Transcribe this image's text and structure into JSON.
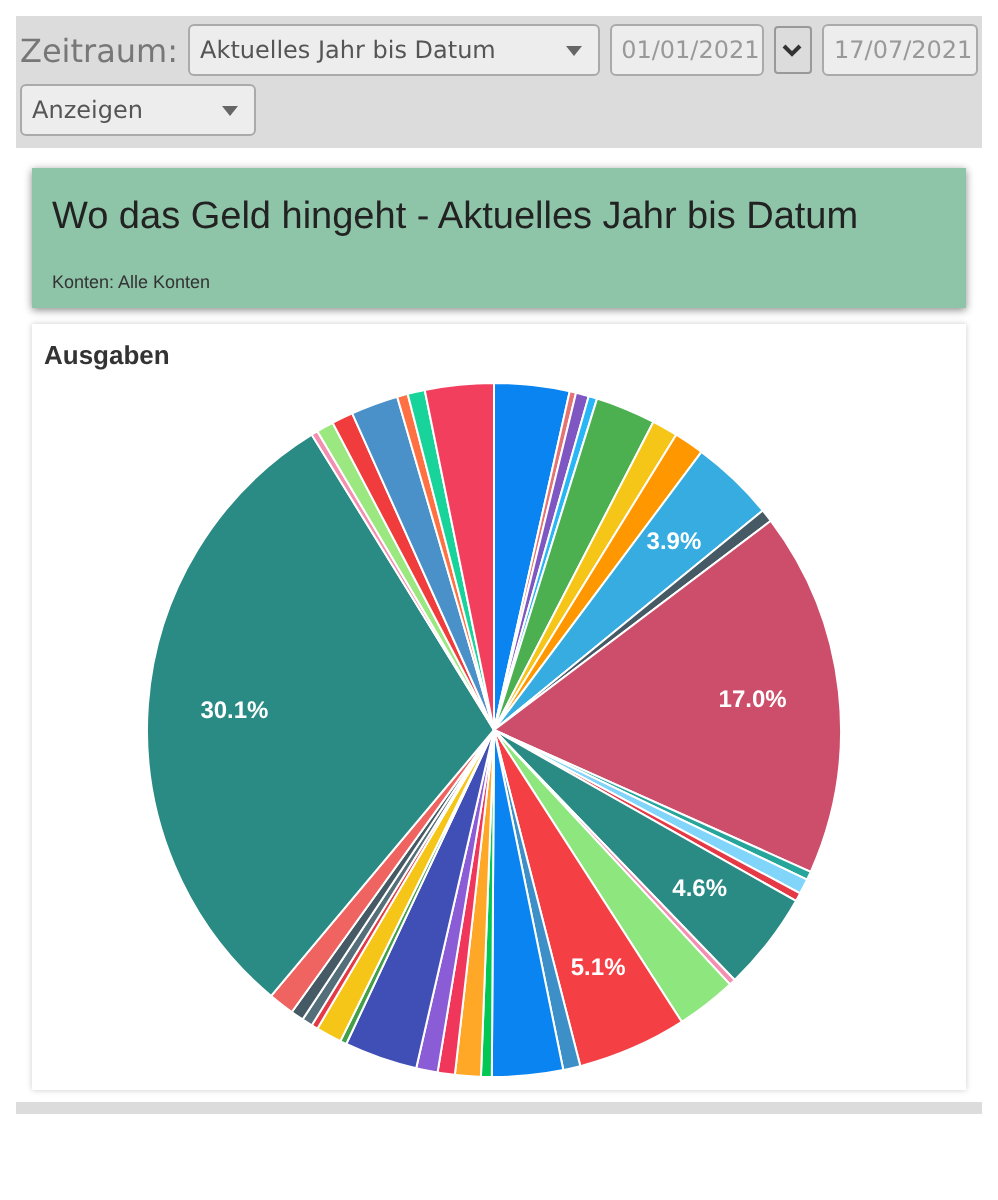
{
  "chart_data": {
    "type": "pie",
    "title": "Wo das Geld hingeht - Aktuelles Jahr bis Datum",
    "subtitle": "Konten: Alle Konten",
    "annotations": [
      "Zeitraum:",
      "Aktuelles Jahr bis Datum",
      "01/01/2021",
      "17/07/2021",
      "Anzeigen",
      "Ausgaben"
    ],
    "categories": [
      null,
      null,
      null,
      null,
      null,
      null,
      null,
      null,
      null,
      null,
      null,
      null,
      null,
      null,
      null,
      null,
      null,
      null,
      null,
      null,
      null,
      null,
      null,
      null,
      null,
      null,
      null,
      null,
      null,
      null,
      null,
      null,
      null,
      null,
      null,
      null,
      null,
      null
    ],
    "values": [
      3.5,
      0.3,
      0.6,
      0.4,
      2.8,
      1.2,
      1.4,
      3.9,
      0.6,
      17.0,
      0.4,
      0.7,
      0.4,
      4.6,
      0.3,
      2.8,
      5.1,
      0.8,
      3.3,
      0.5,
      1.2,
      0.8,
      1.0,
      3.4,
      0.3,
      1.2,
      0.3,
      0.5,
      0.6,
      1.2,
      30.1,
      0.3,
      0.8,
      1.0,
      2.2,
      0.5,
      0.8,
      3.2
    ],
    "value_labels": [
      null,
      null,
      null,
      null,
      null,
      null,
      null,
      "3.9%",
      null,
      "17.0%",
      null,
      null,
      null,
      "4.6%",
      null,
      null,
      "5.1%",
      null,
      null,
      null,
      null,
      null,
      null,
      null,
      null,
      null,
      null,
      null,
      null,
      null,
      "30.1%",
      null,
      null,
      null,
      null,
      null,
      null,
      null
    ],
    "colors": [
      "#0a84f0",
      "#e57373",
      "#7e57c2",
      "#29b6f6",
      "#4caf50",
      "#f5c518",
      "#ff9800",
      "#36ace0",
      "#455a64",
      "#cc4e6a",
      "#26a69a",
      "#81d4fa",
      "#e53945",
      "#2a8a84",
      "#f48fb1",
      "#8ee77e",
      "#f44044",
      "#3d8fc7",
      "#0a84f0",
      "#00c853",
      "#ffa726",
      "#f0365a",
      "#8a5cd6",
      "#3f4fb5",
      "#43a047",
      "#f5c518",
      "#e53945",
      "#546e7a",
      "#455a64",
      "#ef6461",
      "#2a8a84",
      "#f48fb1",
      "#9ae87f",
      "#f03c3c",
      "#4a90c9",
      "#ff7043",
      "#19d49a",
      "#f23f5e"
    ]
  }
}
